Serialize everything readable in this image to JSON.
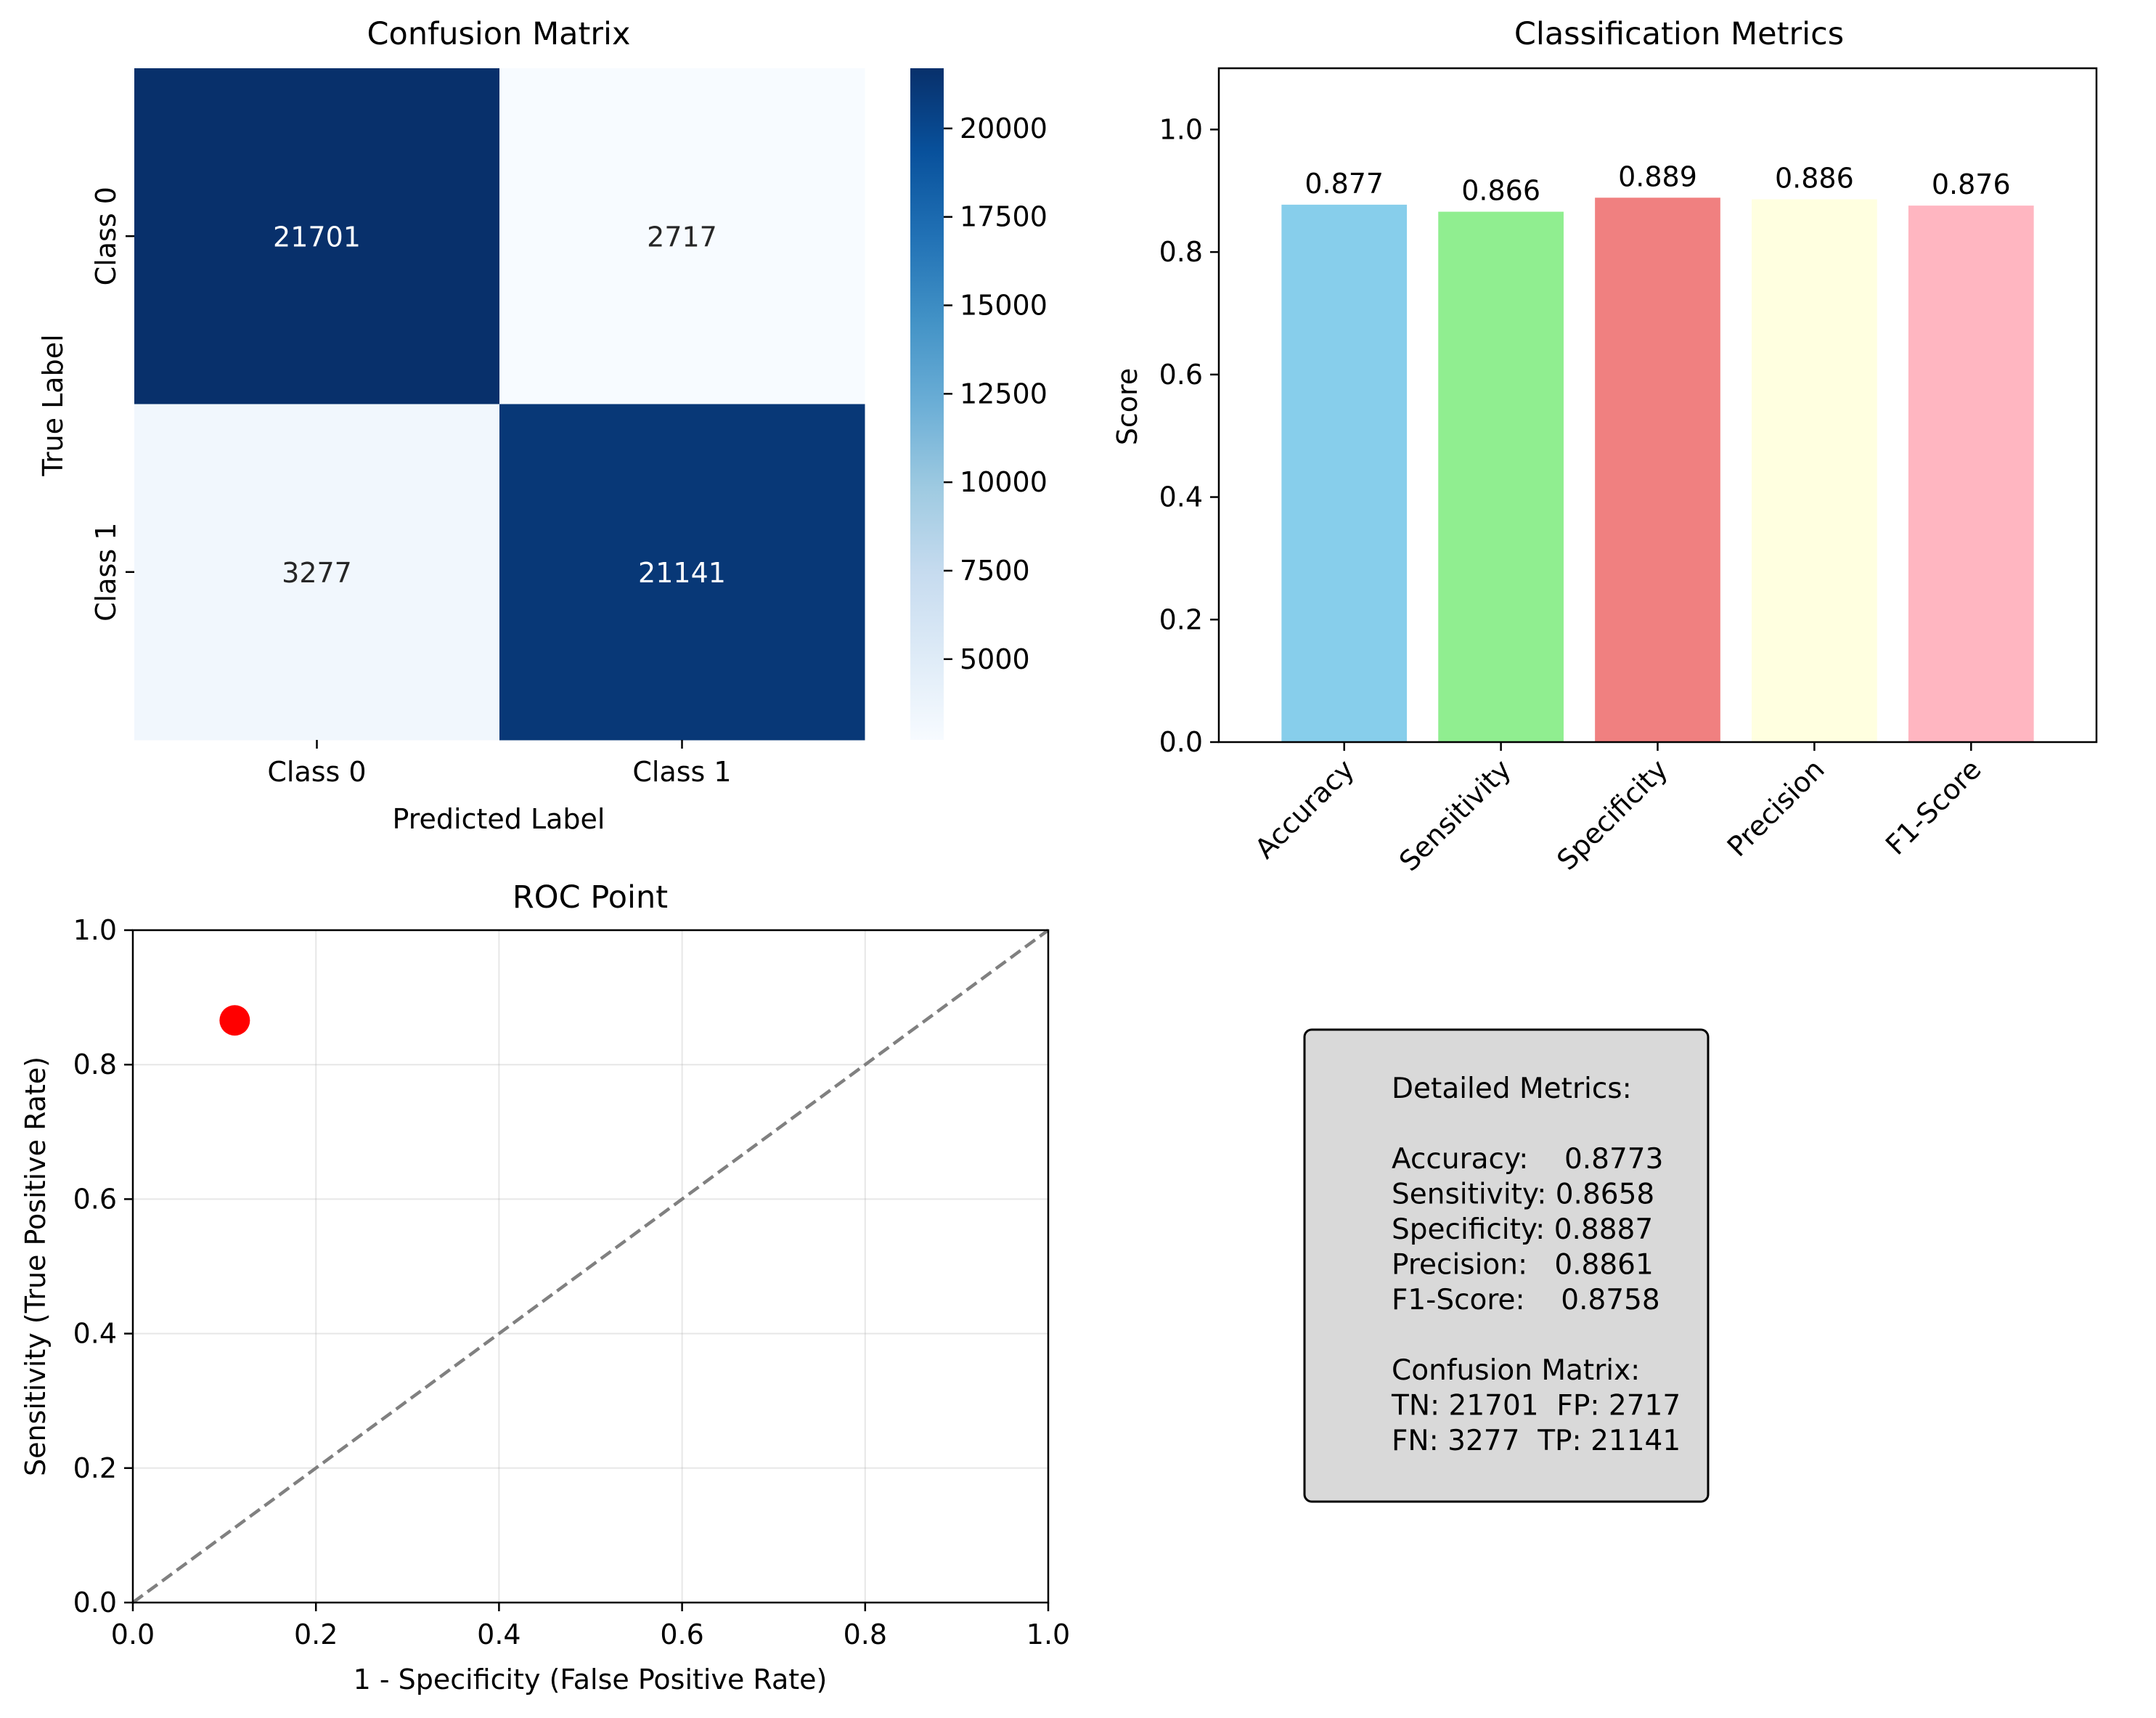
{
  "chart_data": [
    {
      "type": "heatmap",
      "title": "Confusion Matrix",
      "xlabel": "Predicted Label",
      "ylabel": "True Label",
      "x_categories": [
        "Class 0",
        "Class 1"
      ],
      "y_categories": [
        "Class 0",
        "Class 1"
      ],
      "values": [
        [
          21701,
          2717
        ],
        [
          3277,
          21141
        ]
      ],
      "colormap": "Blues",
      "colorbar_range": [
        2717,
        21701
      ],
      "colorbar_ticks": [
        5000,
        7500,
        10000,
        12500,
        15000,
        17500,
        20000
      ],
      "colorbar_tick_labels": [
        "5000",
        "7500",
        "10000",
        "12500",
        "15000",
        "17500",
        "20000"
      ]
    },
    {
      "type": "bar",
      "title": "Classification Metrics",
      "xlabel": "",
      "ylabel": "Score",
      "categories": [
        "Accuracy",
        "Sensitivity",
        "Specificity",
        "Precision",
        "F1-Score"
      ],
      "values": [
        0.8773,
        0.8658,
        0.8887,
        0.8861,
        0.8758
      ],
      "data_labels": [
        "0.877",
        "0.866",
        "0.889",
        "0.886",
        "0.876"
      ],
      "colors": [
        "#87ceeb",
        "#90ee90",
        "#f08080",
        "#ffffe0",
        "#ffb6c1"
      ],
      "ylim": [
        0,
        1.1
      ],
      "yticks": [
        0.0,
        0.2,
        0.4,
        0.6,
        0.8,
        1.0
      ],
      "ytick_labels": [
        "0.0",
        "0.2",
        "0.4",
        "0.6",
        "0.8",
        "1.0"
      ],
      "grid": false
    },
    {
      "type": "scatter",
      "title": "ROC Point",
      "xlabel": "1 - Specificity (False Positive Rate)",
      "ylabel": "Sensitivity (True Positive Rate)",
      "points": [
        {
          "x": 0.1113,
          "y": 0.8658,
          "color": "#ff0000"
        }
      ],
      "reference_line": {
        "x": [
          0,
          1
        ],
        "y": [
          0,
          1
        ],
        "style": "dashed",
        "color": "#808080"
      },
      "xlim": [
        0,
        1
      ],
      "ylim": [
        0,
        1
      ],
      "xticks": [
        0.0,
        0.2,
        0.4,
        0.6,
        0.8,
        1.0
      ],
      "yticks": [
        0.0,
        0.2,
        0.4,
        0.6,
        0.8,
        1.0
      ],
      "xtick_labels": [
        "0.0",
        "0.2",
        "0.4",
        "0.6",
        "0.8",
        "1.0"
      ],
      "ytick_labels": [
        "0.0",
        "0.2",
        "0.4",
        "0.6",
        "0.8",
        "1.0"
      ],
      "grid": true
    }
  ],
  "metrics_box": {
    "lines": [
      "Detailed Metrics:",
      "",
      "Accuracy:    0.8773",
      "Sensitivity: 0.8658",
      "Specificity: 0.8887",
      "Precision:   0.8861",
      "F1-Score:    0.8758",
      "",
      "Confusion Matrix:",
      "TN: 21701  FP: 2717",
      "FN: 3277  TP: 21141"
    ],
    "background": "#d9d9d9"
  }
}
